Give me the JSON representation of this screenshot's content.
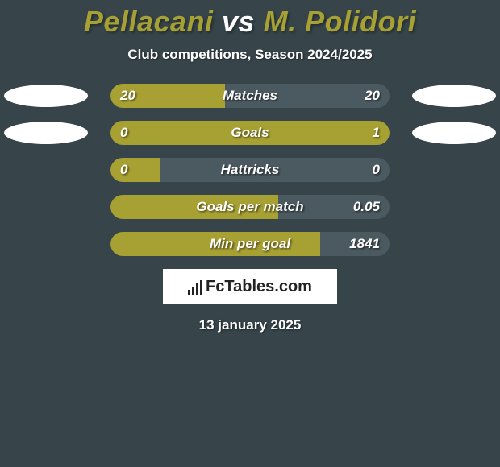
{
  "background_color": "#37454b",
  "title": {
    "player_a": "Pellacani",
    "vs": "vs",
    "player_b": "M. Polidori",
    "color_a": "#a7a032",
    "color_vs": "#ffffff",
    "color_b": "#a7a032"
  },
  "subtitle": "Club competitions, Season 2024/2025",
  "fill_color_a": "#a7a032",
  "fill_color_b": "#a7a032",
  "bar_bg_color": "#4b5a61",
  "badge_color": "#ffffff",
  "rows": [
    {
      "label": "Matches",
      "left": "20",
      "right": "20",
      "left_pct": 41,
      "right_pct": 0,
      "show_badges": true
    },
    {
      "label": "Goals",
      "left": "0",
      "right": "1",
      "left_pct": 18,
      "right_pct": 82,
      "show_badges": true
    },
    {
      "label": "Hattricks",
      "left": "0",
      "right": "0",
      "left_pct": 18,
      "right_pct": 0,
      "show_badges": false
    },
    {
      "label": "Goals per match",
      "left": "",
      "right": "0.05",
      "left_pct": 60,
      "right_pct": 0,
      "show_badges": false
    },
    {
      "label": "Min per goal",
      "left": "",
      "right": "1841",
      "left_pct": 75,
      "right_pct": 0,
      "show_badges": false
    }
  ],
  "logo": "FcTables.com",
  "date": "13 january 2025"
}
